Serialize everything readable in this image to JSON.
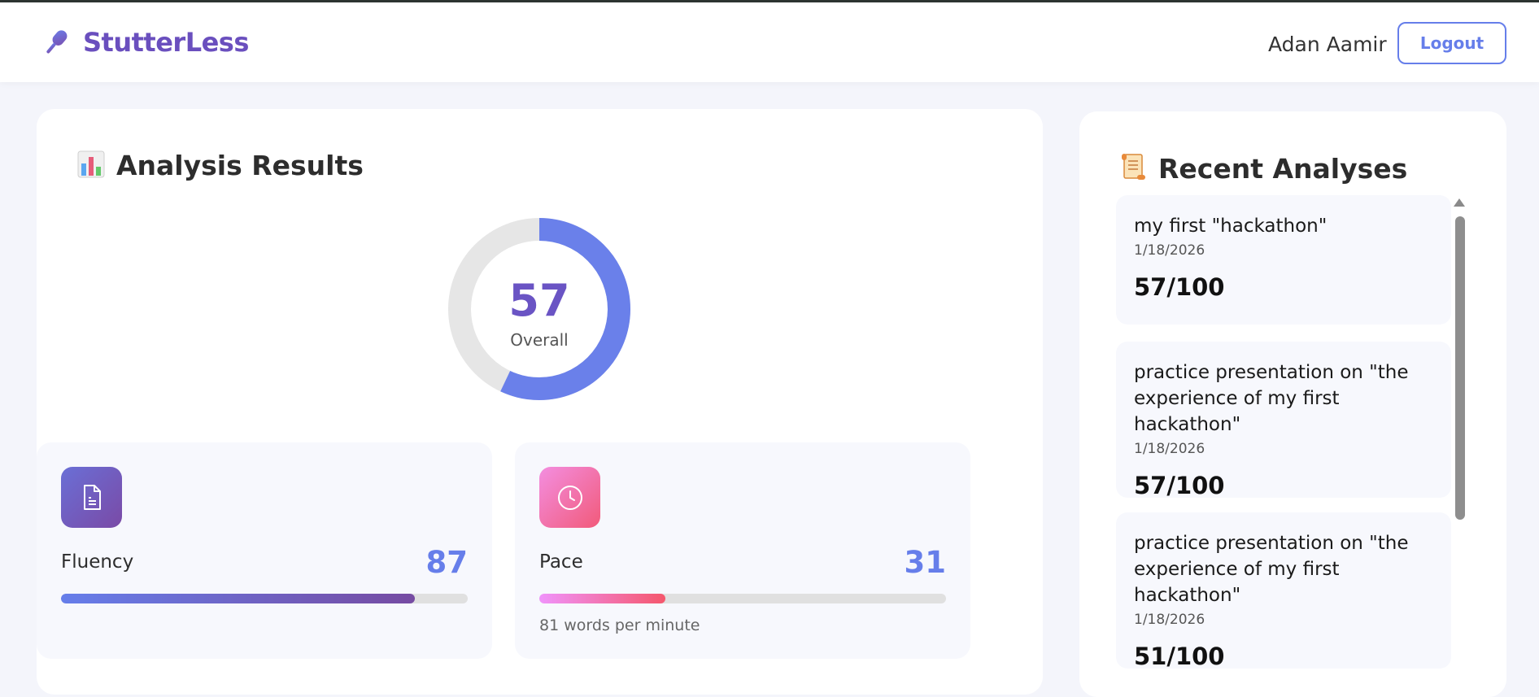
{
  "header": {
    "brand": "StutterLess",
    "user_name": "Adan Aamir",
    "logout_label": "Logout",
    "brand_icon": "microphone-icon"
  },
  "analysis": {
    "title": "Analysis Results",
    "title_icon": "bar-chart-icon",
    "overall_score": "57",
    "overall_label": "Overall",
    "overall_fraction": 0.57,
    "metrics": [
      {
        "label": "Fluency",
        "value": "87",
        "fraction": 0.87,
        "icon": "document-icon",
        "subtext": ""
      },
      {
        "label": "Pace",
        "value": "31",
        "fraction": 0.31,
        "icon": "clock-icon",
        "subtext": "81 words per minute"
      }
    ]
  },
  "recent": {
    "title": "Recent Analyses",
    "title_icon": "scroll-icon",
    "items": [
      {
        "title": "my first \"hackathon\"",
        "date": "1/18/2026",
        "score": "57/100"
      },
      {
        "title": "practice presentation on \"the experience of my first hackathon\"",
        "date": "1/18/2026",
        "score": "57/100"
      },
      {
        "title": "practice presentation on \"the experience of my first hackathon\"",
        "date": "1/18/2026",
        "score": "51/100"
      }
    ]
  },
  "colors": {
    "accent": "#667eea",
    "brand": "#6a4fbe",
    "fluency_gradient": [
      "#667eea",
      "#764ba2"
    ],
    "pace_gradient": [
      "#f093fb",
      "#f5576c"
    ]
  }
}
